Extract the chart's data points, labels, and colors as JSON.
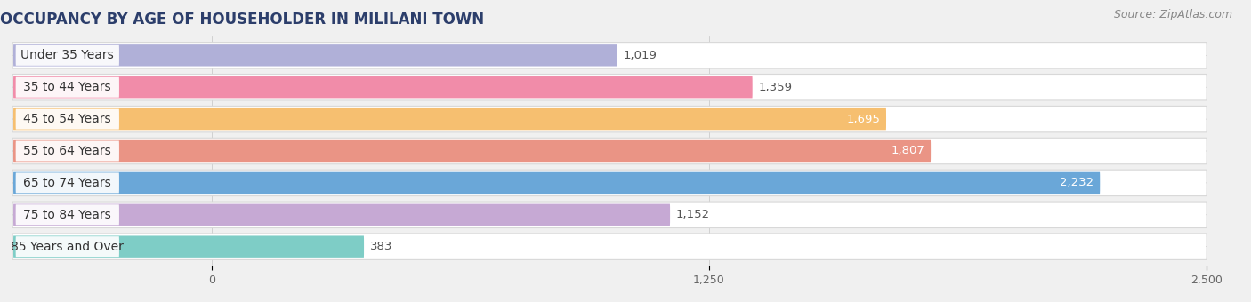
{
  "title": "OCCUPANCY BY AGE OF HOUSEHOLDER IN MILILANI TOWN",
  "source": "Source: ZipAtlas.com",
  "categories": [
    "Under 35 Years",
    "35 to 44 Years",
    "45 to 54 Years",
    "55 to 64 Years",
    "65 to 74 Years",
    "75 to 84 Years",
    "85 Years and Over"
  ],
  "values": [
    1019,
    1359,
    1695,
    1807,
    2232,
    1152,
    383
  ],
  "bar_colors": [
    "#a8a8d4",
    "#f080a0",
    "#f5b860",
    "#e88878",
    "#5a9ed4",
    "#c0a0d0",
    "#70c8c0"
  ],
  "xlim_max": 2500,
  "xticks": [
    0,
    1250,
    2500
  ],
  "background_color": "#f0f0f0",
  "title_fontsize": 12,
  "source_fontsize": 9,
  "label_fontsize": 10,
  "value_fontsize": 9.5,
  "bar_height": 0.68,
  "bar_gap": 1.0
}
